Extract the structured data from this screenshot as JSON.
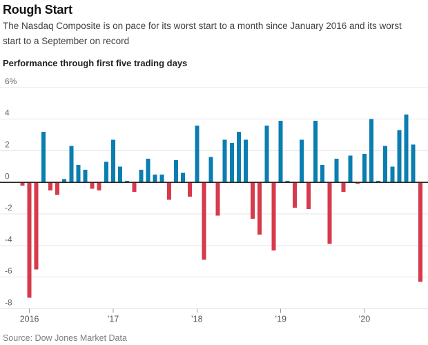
{
  "header": {
    "title": "Rough Start",
    "subtitle_lines": [
      "The Nasdaq Composite is on pace for its worst start to a month since January 2016 and its worst",
      "start to a September on record"
    ]
  },
  "chart_label": "Performance through first five trading days",
  "source": "Source: Dow Jones Market Data",
  "chart_data": {
    "type": "bar",
    "title": "Performance through first five trading days",
    "series_name": "Nasdaq Composite performance through first five trading days (%)",
    "categories": [
      "Dec 2015",
      "Jan 2016",
      "Feb 2016",
      "Mar 2016",
      "Apr 2016",
      "May 2016",
      "Jun 2016",
      "Jul 2016",
      "Aug 2016",
      "Sep 2016",
      "Oct 2016",
      "Nov 2016",
      "Dec 2016",
      "Jan 2017",
      "Feb 2017",
      "Mar 2017",
      "Apr 2017",
      "May 2017",
      "Jun 2017",
      "Jul 2017",
      "Aug 2017",
      "Sep 2017",
      "Oct 2017",
      "Nov 2017",
      "Dec 2017",
      "Jan 2018",
      "Feb 2018",
      "Mar 2018",
      "Apr 2018",
      "May 2018",
      "Jun 2018",
      "Jul 2018",
      "Aug 2018",
      "Sep 2018",
      "Oct 2018",
      "Nov 2018",
      "Dec 2018",
      "Jan 2019",
      "Feb 2019",
      "Mar 2019",
      "Apr 2019",
      "May 2019",
      "Jun 2019",
      "Jul 2019",
      "Aug 2019",
      "Sep 2019",
      "Oct 2019",
      "Nov 2019",
      "Dec 2019",
      "Jan 2020",
      "Feb 2020",
      "Mar 2020",
      "Apr 2020",
      "May 2020",
      "Jun 2020",
      "Jul 2020",
      "Aug 2020",
      "Sep 2020"
    ],
    "values": [
      -0.2,
      -7.3,
      -5.5,
      3.2,
      -0.5,
      -0.8,
      0.2,
      2.3,
      1.1,
      0.8,
      -0.4,
      -0.5,
      1.3,
      2.7,
      1.0,
      0.1,
      -0.6,
      0.8,
      1.5,
      0.5,
      0.5,
      -1.1,
      1.4,
      0.6,
      -0.9,
      3.6,
      -4.9,
      1.6,
      -2.1,
      2.7,
      2.5,
      3.2,
      2.7,
      -2.3,
      -3.3,
      3.6,
      -4.3,
      3.9,
      0.1,
      -1.6,
      2.7,
      -1.7,
      3.9,
      1.1,
      -3.9,
      1.5,
      -0.6,
      1.7,
      -0.1,
      1.8,
      4.0,
      0.1,
      2.3,
      1.0,
      3.3,
      4.3,
      2.4,
      -6.3
    ],
    "unit": "%",
    "ylim": [
      -8,
      6
    ],
    "yticks": [
      6,
      4,
      2,
      0,
      -2,
      -4,
      -6,
      -8
    ],
    "ytick_labels": [
      "6%",
      "4",
      "2",
      "0",
      "-2",
      "-4",
      "-6",
      "-8"
    ],
    "xticks": [
      {
        "index": 1,
        "label": "2016"
      },
      {
        "index": 13,
        "label": "’17"
      },
      {
        "index": 25,
        "label": "’18"
      },
      {
        "index": 37,
        "label": "’19"
      },
      {
        "index": 49,
        "label": "’20"
      }
    ],
    "grid": true,
    "legend": "none",
    "positive_color": "#0a7eb0",
    "negative_color": "#d63a4b",
    "gridline_color": "#e4e4e4",
    "zero_line_color": "#222222",
    "axis_text_color": "#666666"
  }
}
